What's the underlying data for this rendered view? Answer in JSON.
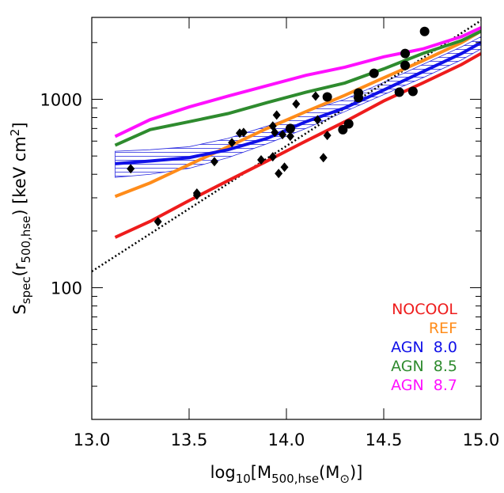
{
  "chart_data": {
    "type": "line",
    "xlabel": [
      "log",
      "10",
      "[M",
      "500,hse",
      "(M",
      "⊙",
      ")]"
    ],
    "ylabel": [
      "S",
      "spec",
      "(r",
      "500,hse",
      ")  [keV cm",
      "2",
      "]"
    ],
    "xlim": [
      13.0,
      15.0
    ],
    "ylim": [
      20,
      2720
    ],
    "ylog": true,
    "xticks": [
      {
        "value": 13.0,
        "label": "13.0"
      },
      {
        "value": 13.5,
        "label": "13.5"
      },
      {
        "value": 14.0,
        "label": "14.0"
      },
      {
        "value": 14.5,
        "label": "14.5"
      },
      {
        "value": 15.0,
        "label": "15.0"
      }
    ],
    "yticks": [
      100,
      1000
    ],
    "yminorticks": [
      20,
      30,
      40,
      50,
      60,
      70,
      80,
      90,
      200,
      300,
      400,
      500,
      600,
      700,
      800,
      900,
      2000
    ],
    "x": [
      13.12,
      13.3,
      13.5,
      13.7,
      13.9,
      14.1,
      14.3,
      14.5,
      14.7,
      14.9,
      15.0
    ],
    "series": [
      {
        "name": "NOCOOL",
        "color": "#ee1c1c",
        "values": [
          185,
          225,
          290,
          370,
          470,
          600,
          760,
          980,
          1220,
          1530,
          1750
        ]
      },
      {
        "name": "REF",
        "color": "#ff8c1a",
        "values": [
          305,
          360,
          450,
          560,
          700,
          860,
          1050,
          1300,
          1600,
          2000,
          2300
        ]
      },
      {
        "name": "AGN  8.0",
        "color": "#1010e8",
        "values": [
          455,
          470,
          490,
          540,
          620,
          760,
          900,
          1120,
          1400,
          1750,
          2000
        ]
      },
      {
        "name": "AGN  8.5",
        "color": "#2e8b2e",
        "values": [
          570,
          690,
          760,
          840,
          960,
          1090,
          1220,
          1450,
          1750,
          2050,
          2300
        ]
      },
      {
        "name": "AGN  8.7",
        "color": "#ff10ff",
        "values": [
          635,
          780,
          910,
          1040,
          1180,
          1340,
          1480,
          1680,
          1850,
          2150,
          2400
        ]
      }
    ],
    "band": {
      "color": "#2a2ae0",
      "lower": [
        385,
        400,
        430,
        490,
        580,
        700,
        860,
        1060,
        1300,
        1620,
        1850
      ],
      "upper": [
        530,
        540,
        560,
        620,
        720,
        860,
        1000,
        1230,
        1530,
        1900,
        2150
      ]
    },
    "reference_line": {
      "x": [
        13.0,
        15.0
      ],
      "values": [
        122,
        2620
      ]
    },
    "points": [
      {
        "marker": "diamond",
        "x": [
          13.2,
          13.34,
          13.54,
          13.54,
          13.63,
          13.72,
          13.76,
          13.78,
          13.87,
          13.93,
          13.93,
          13.94,
          13.95,
          13.98,
          13.96,
          13.99,
          14.02,
          14.02,
          14.05,
          14.15,
          14.16,
          14.19,
          14.21
        ],
        "y": [
          428,
          224,
          318,
          310,
          467,
          589,
          661,
          667,
          477,
          721,
          495,
          667,
          825,
          649,
          404,
          436,
          700,
          636,
          944,
          1039,
          778,
          490,
          643
        ]
      },
      {
        "marker": "circle",
        "x": [
          14.02,
          14.21,
          14.29,
          14.32,
          14.37,
          14.37,
          14.45,
          14.58,
          14.61,
          14.61,
          14.65,
          14.71
        ],
        "y": [
          700,
          1029,
          690,
          741,
          1080,
          1020,
          1374,
          1091,
          1750,
          1513,
          1101,
          2291
        ]
      }
    ]
  }
}
